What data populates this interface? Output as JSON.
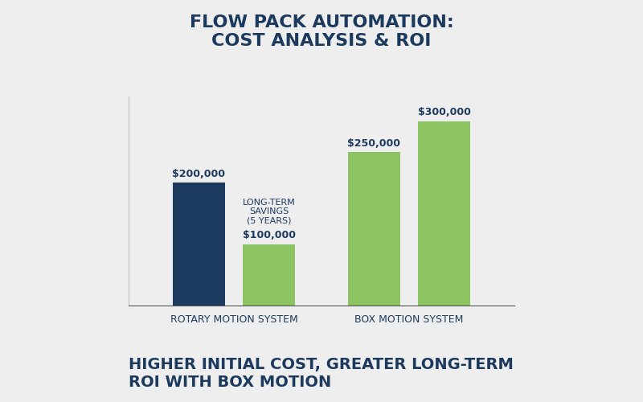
{
  "chart_data": {
    "type": "bar",
    "title": "FLOW PACK AUTOMATION:\nCOST ANALYSIS & ROI",
    "subtitle": "HIGHER INITIAL COST, GREATER LONG-TERM\nROI WITH BOX MOTION",
    "categories": [
      "ROTARY MOTION SYSTEM",
      "BOX MOTION SYSTEM"
    ],
    "series": [
      {
        "colors": [
          "#1c3a5e",
          "#8dc462"
        ],
        "values": [
          200000,
          250000
        ],
        "value_labels": [
          "$200,000",
          "$250,000"
        ]
      },
      {
        "color": "#8dc462",
        "values": [
          100000,
          300000
        ],
        "value_labels": [
          "$100,000",
          "$300,000"
        ],
        "annotations": [
          "LONG-TERM\nSAVINGS\n(5 YEARS)",
          null
        ]
      }
    ],
    "ylim": [
      0,
      340000
    ],
    "data_labels": true,
    "tick_labels": "x",
    "grid": false
  }
}
